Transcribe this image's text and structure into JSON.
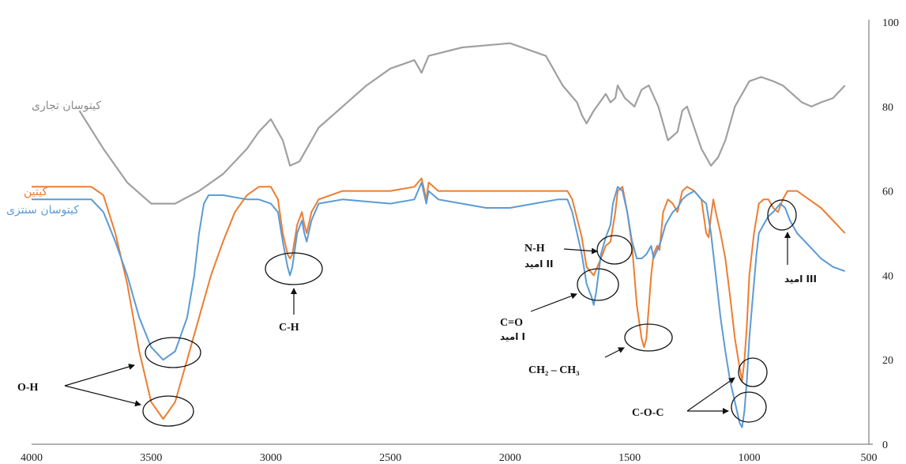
{
  "chart_data": {
    "type": "line",
    "xlim": [
      4000,
      500
    ],
    "ylim": [
      0,
      100
    ],
    "x_ticks": [
      "4000",
      "3500",
      "3000",
      "2500",
      "2000",
      "1500",
      "1000",
      "500"
    ],
    "y_ticks": [
      "0",
      "20",
      "40",
      "60",
      "80",
      "100"
    ],
    "series": [
      {
        "name": "کیتوسان تجاری",
        "color": "#a0a0a0",
        "points": [
          [
            3800,
            79
          ],
          [
            3700,
            70
          ],
          [
            3600,
            62
          ],
          [
            3500,
            57
          ],
          [
            3400,
            57
          ],
          [
            3300,
            60
          ],
          [
            3200,
            64
          ],
          [
            3100,
            70
          ],
          [
            3050,
            74
          ],
          [
            3000,
            77
          ],
          [
            2950,
            72
          ],
          [
            2920,
            66
          ],
          [
            2880,
            67
          ],
          [
            2800,
            75
          ],
          [
            2700,
            80
          ],
          [
            2600,
            85
          ],
          [
            2500,
            89
          ],
          [
            2400,
            91
          ],
          [
            2370,
            88
          ],
          [
            2340,
            92
          ],
          [
            2200,
            94
          ],
          [
            2000,
            95
          ],
          [
            1850,
            92
          ],
          [
            1780,
            85
          ],
          [
            1720,
            81
          ],
          [
            1700,
            78
          ],
          [
            1680,
            76
          ],
          [
            1650,
            79
          ],
          [
            1600,
            83
          ],
          [
            1580,
            81
          ],
          [
            1560,
            82
          ],
          [
            1550,
            85
          ],
          [
            1520,
            82
          ],
          [
            1480,
            80
          ],
          [
            1450,
            84
          ],
          [
            1420,
            85
          ],
          [
            1380,
            80
          ],
          [
            1340,
            72
          ],
          [
            1300,
            74
          ],
          [
            1280,
            79
          ],
          [
            1260,
            80
          ],
          [
            1230,
            75
          ],
          [
            1200,
            70
          ],
          [
            1160,
            66
          ],
          [
            1130,
            68
          ],
          [
            1100,
            72
          ],
          [
            1060,
            80
          ],
          [
            1030,
            83
          ],
          [
            1000,
            86
          ],
          [
            950,
            87
          ],
          [
            900,
            86
          ],
          [
            860,
            85
          ],
          [
            820,
            83
          ],
          [
            780,
            81
          ],
          [
            740,
            80
          ],
          [
            700,
            81
          ],
          [
            650,
            82
          ],
          [
            600,
            85
          ]
        ]
      },
      {
        "name": "کیتین",
        "color": "#ed7d31",
        "points": [
          [
            4000,
            61
          ],
          [
            3850,
            61
          ],
          [
            3750,
            61
          ],
          [
            3700,
            59
          ],
          [
            3650,
            50
          ],
          [
            3600,
            38
          ],
          [
            3550,
            22
          ],
          [
            3500,
            10
          ],
          [
            3450,
            6
          ],
          [
            3400,
            10
          ],
          [
            3350,
            20
          ],
          [
            3300,
            30
          ],
          [
            3250,
            40
          ],
          [
            3200,
            48
          ],
          [
            3150,
            55
          ],
          [
            3100,
            59
          ],
          [
            3050,
            61
          ],
          [
            3000,
            61
          ],
          [
            2970,
            58
          ],
          [
            2950,
            50
          ],
          [
            2930,
            45
          ],
          [
            2920,
            44
          ],
          [
            2910,
            45
          ],
          [
            2890,
            52
          ],
          [
            2870,
            55
          ],
          [
            2860,
            52
          ],
          [
            2850,
            50
          ],
          [
            2830,
            55
          ],
          [
            2800,
            58
          ],
          [
            2700,
            60
          ],
          [
            2500,
            60
          ],
          [
            2400,
            61
          ],
          [
            2370,
            63
          ],
          [
            2350,
            58
          ],
          [
            2340,
            62
          ],
          [
            2300,
            60
          ],
          [
            2100,
            60
          ],
          [
            2000,
            60
          ],
          [
            1900,
            60
          ],
          [
            1800,
            60
          ],
          [
            1760,
            60
          ],
          [
            1740,
            58
          ],
          [
            1700,
            49
          ],
          [
            1680,
            42
          ],
          [
            1650,
            40
          ],
          [
            1620,
            44
          ],
          [
            1600,
            47
          ],
          [
            1580,
            48
          ],
          [
            1560,
            55
          ],
          [
            1550,
            60
          ],
          [
            1530,
            61
          ],
          [
            1510,
            55
          ],
          [
            1490,
            47
          ],
          [
            1470,
            33
          ],
          [
            1450,
            25
          ],
          [
            1440,
            23
          ],
          [
            1430,
            25
          ],
          [
            1410,
            40
          ],
          [
            1400,
            45
          ],
          [
            1385,
            47
          ],
          [
            1375,
            46
          ],
          [
            1360,
            55
          ],
          [
            1340,
            58
          ],
          [
            1320,
            57
          ],
          [
            1300,
            55
          ],
          [
            1280,
            60
          ],
          [
            1260,
            61
          ],
          [
            1230,
            60
          ],
          [
            1200,
            58
          ],
          [
            1180,
            50
          ],
          [
            1170,
            49
          ],
          [
            1160,
            54
          ],
          [
            1150,
            58
          ],
          [
            1140,
            55
          ],
          [
            1120,
            50
          ],
          [
            1100,
            44
          ],
          [
            1080,
            35
          ],
          [
            1060,
            25
          ],
          [
            1040,
            18
          ],
          [
            1030,
            15
          ],
          [
            1020,
            20
          ],
          [
            1010,
            28
          ],
          [
            1000,
            40
          ],
          [
            980,
            50
          ],
          [
            960,
            57
          ],
          [
            940,
            58
          ],
          [
            920,
            58
          ],
          [
            900,
            56
          ],
          [
            880,
            55
          ],
          [
            860,
            58
          ],
          [
            840,
            60
          ],
          [
            800,
            60
          ],
          [
            750,
            58
          ],
          [
            700,
            56
          ],
          [
            650,
            53
          ],
          [
            600,
            50
          ]
        ]
      },
      {
        "name": "کیتوسان سنتزی",
        "color": "#5b9bd5",
        "points": [
          [
            4000,
            58
          ],
          [
            3850,
            58
          ],
          [
            3750,
            58
          ],
          [
            3700,
            55
          ],
          [
            3650,
            48
          ],
          [
            3600,
            40
          ],
          [
            3550,
            30
          ],
          [
            3500,
            23
          ],
          [
            3450,
            20
          ],
          [
            3400,
            22
          ],
          [
            3350,
            30
          ],
          [
            3320,
            40
          ],
          [
            3300,
            50
          ],
          [
            3280,
            57
          ],
          [
            3260,
            59
          ],
          [
            3200,
            59
          ],
          [
            3100,
            58
          ],
          [
            3050,
            58
          ],
          [
            3000,
            57
          ],
          [
            2970,
            55
          ],
          [
            2950,
            48
          ],
          [
            2930,
            42
          ],
          [
            2920,
            40
          ],
          [
            2910,
            42
          ],
          [
            2890,
            50
          ],
          [
            2870,
            53
          ],
          [
            2860,
            50
          ],
          [
            2850,
            48
          ],
          [
            2830,
            53
          ],
          [
            2800,
            57
          ],
          [
            2700,
            58
          ],
          [
            2500,
            57
          ],
          [
            2400,
            58
          ],
          [
            2370,
            62
          ],
          [
            2350,
            57
          ],
          [
            2340,
            60
          ],
          [
            2300,
            58
          ],
          [
            2100,
            56
          ],
          [
            2000,
            56
          ],
          [
            1900,
            57
          ],
          [
            1800,
            58
          ],
          [
            1760,
            58
          ],
          [
            1740,
            55
          ],
          [
            1700,
            45
          ],
          [
            1680,
            38
          ],
          [
            1660,
            35
          ],
          [
            1650,
            33
          ],
          [
            1640,
            36
          ],
          [
            1620,
            45
          ],
          [
            1600,
            49
          ],
          [
            1580,
            52
          ],
          [
            1570,
            57
          ],
          [
            1550,
            61
          ],
          [
            1530,
            60
          ],
          [
            1510,
            55
          ],
          [
            1490,
            48
          ],
          [
            1470,
            44
          ],
          [
            1450,
            44
          ],
          [
            1430,
            45
          ],
          [
            1410,
            47
          ],
          [
            1400,
            44
          ],
          [
            1385,
            46
          ],
          [
            1370,
            48
          ],
          [
            1350,
            52
          ],
          [
            1320,
            55
          ],
          [
            1300,
            56
          ],
          [
            1280,
            58
          ],
          [
            1260,
            59
          ],
          [
            1230,
            60
          ],
          [
            1200,
            58
          ],
          [
            1180,
            57
          ],
          [
            1160,
            50
          ],
          [
            1140,
            40
          ],
          [
            1120,
            30
          ],
          [
            1100,
            22
          ],
          [
            1080,
            15
          ],
          [
            1060,
            10
          ],
          [
            1040,
            5
          ],
          [
            1030,
            4
          ],
          [
            1020,
            8
          ],
          [
            1010,
            15
          ],
          [
            1000,
            25
          ],
          [
            985,
            35
          ],
          [
            970,
            45
          ],
          [
            960,
            50
          ],
          [
            940,
            52
          ],
          [
            920,
            54
          ],
          [
            900,
            55
          ],
          [
            870,
            57
          ],
          [
            850,
            56
          ],
          [
            830,
            53
          ],
          [
            800,
            50
          ],
          [
            750,
            47
          ],
          [
            700,
            44
          ],
          [
            650,
            42
          ],
          [
            600,
            41
          ]
        ]
      }
    ],
    "legend_labels": [
      {
        "text": "کیتوسان تجاری",
        "color": "#8c8c8c"
      },
      {
        "text": "کیتین",
        "color": "#ed7d31"
      },
      {
        "text": "کیتوسان سنتزی",
        "color": "#5b9bd5"
      }
    ],
    "annotations": [
      "O-H",
      "C-H",
      "N-H",
      "امید II",
      "C=O",
      "امید I",
      "CH₂ – CH₃",
      "امید III",
      "C-O-C"
    ]
  }
}
